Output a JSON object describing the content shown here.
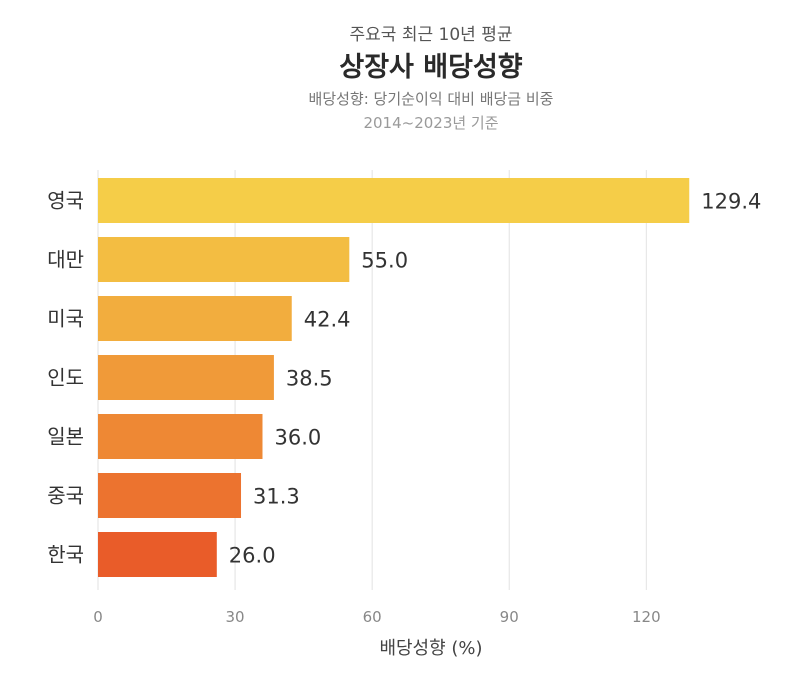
{
  "header": {
    "supertitle": "주요국 최근 10년 평균",
    "title": "상장사 배당성향",
    "subtitle": "배당성향: 당기순이익 대비 배당금 비중",
    "period": "2014~2023년 기준"
  },
  "chart_data": {
    "type": "bar",
    "orientation": "horizontal",
    "categories": [
      "영국",
      "대만",
      "미국",
      "인도",
      "일본",
      "중국",
      "한국"
    ],
    "values": [
      129.4,
      55.0,
      42.4,
      38.5,
      36.0,
      31.3,
      26.0
    ],
    "value_labels": [
      "129.4",
      "55.0",
      "42.4",
      "38.5",
      "36.0",
      "31.3",
      "26.0"
    ],
    "bar_colors": [
      "#f5cd48",
      "#f3bd42",
      "#f2ad3e",
      "#f09a39",
      "#ee8834",
      "#ec732f",
      "#e95c29"
    ],
    "xlabel": "배당성향 (%)",
    "xlim": [
      0,
      130
    ],
    "xticks": [
      0,
      30,
      60,
      90,
      120
    ],
    "grid": true
  }
}
